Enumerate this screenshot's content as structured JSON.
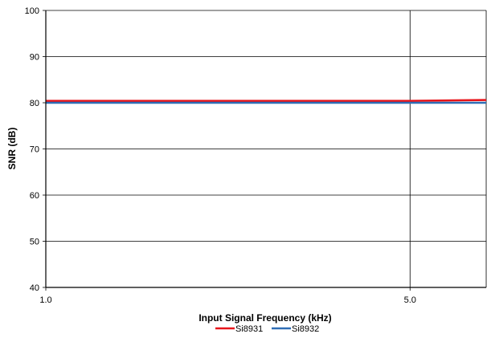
{
  "chart_data": {
    "type": "line",
    "title": "",
    "xlabel": "Input Signal Frequency (kHz)",
    "ylabel": "SNR (dB)",
    "x_scale": "log",
    "xlim": [
      1.0,
      7.0
    ],
    "ylim": [
      40,
      100
    ],
    "x_tick_values": [
      1.0,
      5.0
    ],
    "x_tick_labels": [
      "1.0",
      "5.0"
    ],
    "y_tick_values": [
      40,
      50,
      60,
      70,
      80,
      90,
      100
    ],
    "y_tick_labels": [
      "40",
      "50",
      "60",
      "70",
      "80",
      "90",
      "100"
    ],
    "grid": true,
    "legend_position": "bottom-center",
    "series": [
      {
        "name": "Si8931",
        "color": "#e8151b",
        "x": [
          1.0,
          2.0,
          3.0,
          5.0,
          7.0
        ],
        "y": [
          80.4,
          80.4,
          80.4,
          80.4,
          80.6
        ]
      },
      {
        "name": "Si8932",
        "color": "#2f6db5",
        "x": [
          1.0,
          2.0,
          3.0,
          5.0,
          7.0
        ],
        "y": [
          80.0,
          80.0,
          80.0,
          80.0,
          80.0
        ]
      }
    ]
  }
}
